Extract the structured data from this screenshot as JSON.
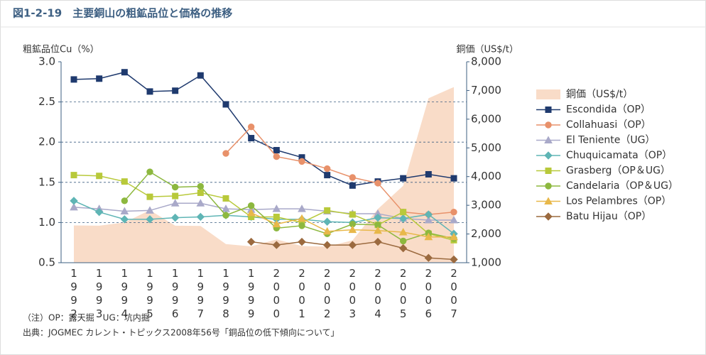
{
  "chart_data": {
    "type": "line",
    "title": "図1-2-19　主要銅山の粗鉱品位と価格の推移",
    "ylabel": "粗鉱品位Cu（%）",
    "y2label": "銅価（US$/t）",
    "notes": [
      "（注）OP：露天掘　UG：坑内掘",
      "出典：JOGMEC カレント・トピックス2008年56号「銅品位の低下傾向について」"
    ],
    "categories": [
      "1992",
      "1993",
      "1994",
      "1995",
      "1996",
      "1997",
      "1998",
      "1999",
      "2000",
      "2001",
      "2002",
      "2003",
      "2004",
      "2005",
      "2006",
      "2007"
    ],
    "ylim": [
      0.5,
      3.0
    ],
    "yticks": [
      0.5,
      {
        "value": 1,
        "label": "1.0"
      },
      1.5,
      {
        "value": 2,
        "label": "2.0"
      },
      2.5,
      {
        "value": 3,
        "label": "3.0"
      }
    ],
    "y2lim": [
      1000,
      8000
    ],
    "y2ticks": [
      {
        "value": 1000,
        "label": "1,000"
      },
      {
        "value": 2000,
        "label": "2,000"
      },
      {
        "value": 3000,
        "label": "3,000"
      },
      {
        "value": 4000,
        "label": "4,000"
      },
      {
        "value": 5000,
        "label": "5,000"
      },
      {
        "value": 6000,
        "label": "6,000"
      },
      {
        "value": 7000,
        "label": "7,000"
      },
      {
        "value": 8000,
        "label": "8,000"
      }
    ],
    "grid": true,
    "legend": "right",
    "series": [
      {
        "name": "銅価（US$/t）",
        "type": "area",
        "axis": "y2",
        "color": "#f9dcc8",
        "values": [
          2300,
          2290,
          2400,
          2830,
          2290,
          2280,
          1650,
          1570,
          1810,
          1580,
          1560,
          1780,
          2870,
          3680,
          6730,
          7120
        ]
      },
      {
        "name": "Escondida（OP）",
        "marker": "square",
        "color": "#1f3a6e",
        "values": [
          2.78,
          2.79,
          2.87,
          2.63,
          2.64,
          2.83,
          2.47,
          2.05,
          1.9,
          1.81,
          1.59,
          1.46,
          1.51,
          1.55,
          1.6,
          1.55
        ]
      },
      {
        "name": "Collahuasi（OP）",
        "marker": "circle",
        "color": "#e8916a",
        "values": [
          null,
          null,
          null,
          null,
          null,
          null,
          1.86,
          2.19,
          1.82,
          1.76,
          1.67,
          1.56,
          1.49,
          1.13,
          1.1,
          1.13
        ]
      },
      {
        "name": "El Teniente（UG）",
        "marker": "triangle",
        "color": "#a9a9c9",
        "values": [
          1.19,
          1.17,
          1.14,
          1.15,
          1.24,
          1.24,
          1.17,
          1.16,
          1.17,
          1.17,
          1.14,
          1.11,
          1.11,
          1.05,
          1.03,
          1.03
        ]
      },
      {
        "name": "Chuquicamata（OP）",
        "marker": "diamond",
        "color": "#5fb5b5",
        "values": [
          1.27,
          1.13,
          1.04,
          1.04,
          1.06,
          1.07,
          1.09,
          1.07,
          1.04,
          1.04,
          1.01,
          1.0,
          1.06,
          1.05,
          1.1,
          0.86
        ]
      },
      {
        "name": "Grasberg（OP＆UG）",
        "marker": "square",
        "color": "#b8c93a",
        "values": [
          1.59,
          1.58,
          1.51,
          1.32,
          1.33,
          1.37,
          1.3,
          1.07,
          1.07,
          1.0,
          1.15,
          1.1,
          0.97,
          1.13,
          0.86,
          0.78
        ]
      },
      {
        "name": "Candelaria（OP＆UG）",
        "marker": "circle",
        "color": "#8db83f",
        "values": [
          null,
          null,
          1.27,
          1.63,
          1.44,
          1.45,
          1.09,
          1.21,
          0.93,
          0.96,
          0.86,
          0.98,
          0.97,
          0.77,
          0.87,
          0.8
        ]
      },
      {
        "name": "Los Pelambres（OP）",
        "marker": "triangle",
        "color": "#e8b84a",
        "values": [
          null,
          null,
          null,
          null,
          null,
          null,
          null,
          1.12,
          0.98,
          1.05,
          0.89,
          0.91,
          0.9,
          0.88,
          0.82,
          0.82
        ]
      },
      {
        "name": "Batu Hijau（OP）",
        "marker": "diamond",
        "color": "#9b6a3f",
        "values": [
          null,
          null,
          null,
          null,
          null,
          null,
          null,
          0.76,
          0.72,
          0.76,
          0.72,
          0.72,
          0.76,
          0.68,
          0.56,
          0.54
        ]
      }
    ]
  }
}
